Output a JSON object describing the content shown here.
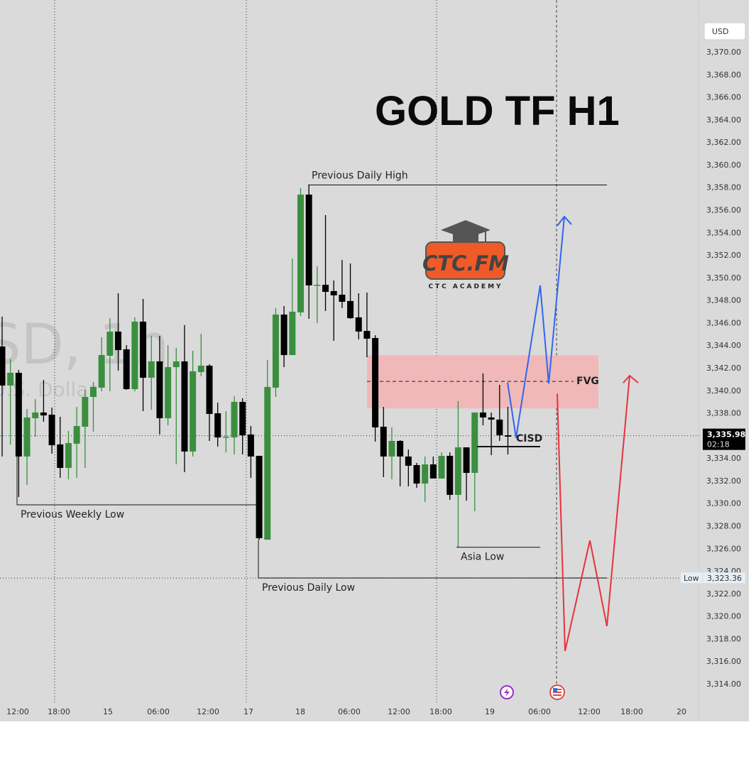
{
  "chart_data": {
    "type": "candlestick",
    "title": "GOLD TF H1",
    "watermark": {
      "symbol": "SD, 1h",
      "description": "U.S. Dollar"
    },
    "currency": "USD",
    "ylim": [
      3312.5,
      3373.5
    ],
    "y_ticks": [
      "3,370.00",
      "3,368.00",
      "3,366.00",
      "3,364.00",
      "3,362.00",
      "3,360.00",
      "3,358.00",
      "3,356.00",
      "3,354.00",
      "3,352.00",
      "3,350.00",
      "3,348.00",
      "3,346.00",
      "3,344.00",
      "3,342.00",
      "3,340.00",
      "3,338.00",
      "3,334.00",
      "3,332.00",
      "3,330.00",
      "3,328.00",
      "3,326.00",
      "3,324.00",
      "3,322.00",
      "3,320.00",
      "3,318.00",
      "3,316.00",
      "3,314.00"
    ],
    "y_tick_values": [
      3370,
      3368,
      3366,
      3364,
      3362,
      3360,
      3358,
      3356,
      3354,
      3352,
      3350,
      3348,
      3346,
      3344,
      3342,
      3340,
      3338,
      3334,
      3332,
      3330,
      3328,
      3326,
      3324,
      3322,
      3320,
      3318,
      3316,
      3314
    ],
    "x_ticks": [
      "12:00",
      "18:00",
      "15",
      "06:00",
      "12:00",
      "17",
      "18",
      "06:00",
      "12:00",
      "18:00",
      "19",
      "06:00",
      "12:00",
      "18:00",
      "20"
    ],
    "current_price": {
      "value": 3335.98,
      "label": "3,335.98",
      "countdown": "02:18"
    },
    "low_marker": {
      "label": "Low",
      "value": 3323.36,
      "value_label": "3,323.36"
    },
    "colors": {
      "bull": "#3a8f3e",
      "bear": "#000000",
      "background": "#dadada",
      "fvg": "#f0b8b8",
      "bull_path": "#2f66f0",
      "bear_path": "#e8323c"
    },
    "candles": [
      [
        3343.89,
        3346.53,
        3334.14,
        3340.43
      ],
      [
        3340.43,
        3342.76,
        3335.21,
        3341.56
      ],
      [
        3341.56,
        3341.81,
        3330.55,
        3334.14
      ],
      [
        3334.14,
        3338.35,
        3331.62,
        3337.6
      ],
      [
        3337.53,
        3339.23,
        3335.9,
        3338.04
      ],
      [
        3338.04,
        3340.93,
        3337.22,
        3337.78
      ],
      [
        3337.85,
        3338.48,
        3334.39,
        3335.14
      ],
      [
        3335.21,
        3337.66,
        3332.25,
        3333.13
      ],
      [
        3333.13,
        3336.4,
        3332.12,
        3335.33
      ],
      [
        3335.27,
        3338.54,
        3332.25,
        3336.84
      ],
      [
        3336.78,
        3340.05,
        3333.13,
        3339.42
      ],
      [
        3339.42,
        3340.74,
        3336.34,
        3340.3
      ],
      [
        3340.24,
        3344.71,
        3339.92,
        3343.13
      ],
      [
        3343.07,
        3346.4,
        3339.92,
        3345.21
      ],
      [
        3345.21,
        3348.61,
        3341.75,
        3343.57
      ],
      [
        3343.64,
        3344.01,
        3340.05,
        3340.11
      ],
      [
        3340.11,
        3346.47,
        3339.92,
        3346.09
      ],
      [
        3346.09,
        3348.1,
        3338.16,
        3341.12
      ],
      [
        3341.12,
        3344.83,
        3338.29,
        3342.57
      ],
      [
        3342.57,
        3344.83,
        3336.09,
        3337.53
      ],
      [
        3337.53,
        3344.01,
        3336.9,
        3342.06
      ],
      [
        3342.06,
        3343.76,
        3333.44,
        3342.57
      ],
      [
        3342.57,
        3345.78,
        3332.75,
        3334.58
      ],
      [
        3334.58,
        3343.51,
        3334.14,
        3341.69
      ],
      [
        3341.62,
        3345.02,
        3341.25,
        3342.19
      ],
      [
        3342.19,
        3342.32,
        3335.52,
        3337.91
      ],
      [
        3337.97,
        3338.92,
        3335.02,
        3335.83
      ],
      [
        3335.83,
        3338.16,
        3334.51,
        3335.9
      ],
      [
        3335.83,
        3339.48,
        3334.32,
        3338.98
      ],
      [
        3338.98,
        3339.3,
        3334.32,
        3336.02
      ],
      [
        3336.09,
        3336.84,
        3332.25,
        3334.14
      ],
      [
        3334.2,
        3334.2,
        3326.77,
        3326.9
      ],
      [
        3326.77,
        3342.69,
        3326.77,
        3340.3
      ],
      [
        3340.24,
        3347.29,
        3339.42,
        3346.72
      ],
      [
        3346.72,
        3347.47,
        3342.06,
        3343.13
      ],
      [
        3343.13,
        3351.69,
        3343.13,
        3346.97
      ],
      [
        3346.91,
        3357.92,
        3346.59,
        3357.35
      ],
      [
        3357.35,
        3358.23,
        3346.34,
        3349.3
      ],
      [
        3349.3,
        3351.0,
        3345.96,
        3349.36
      ],
      [
        3349.36,
        3355.53,
        3347.03,
        3348.73
      ],
      [
        3348.8,
        3349.74,
        3344.39,
        3348.42
      ],
      [
        3348.48,
        3351.56,
        3347.29,
        3347.85
      ],
      [
        3347.92,
        3351.25,
        3346.34,
        3346.4
      ],
      [
        3346.47,
        3348.61,
        3344.52,
        3345.21
      ],
      [
        3345.27,
        3348.67,
        3342.94,
        3344.58
      ],
      [
        3344.64,
        3344.89,
        3335.46,
        3336.72
      ],
      [
        3336.78,
        3338.54,
        3332.31,
        3334.14
      ],
      [
        3334.14,
        3336.72,
        3332.12,
        3335.52
      ],
      [
        3335.52,
        3335.58,
        3331.49,
        3334.14
      ],
      [
        3334.14,
        3334.76,
        3331.49,
        3333.32
      ],
      [
        3333.38,
        3333.57,
        3331.37,
        3331.74
      ],
      [
        3331.74,
        3334.14,
        3330.11,
        3333.44
      ],
      [
        3333.44,
        3334.14,
        3332.19,
        3332.19
      ],
      [
        3332.19,
        3334.51,
        3332.19,
        3334.2
      ],
      [
        3334.2,
        3334.51,
        3330.3,
        3330.74
      ],
      [
        3330.74,
        3339.04,
        3326.08,
        3334.95
      ],
      [
        3334.95,
        3334.95,
        3330.23,
        3332.69
      ],
      [
        3332.69,
        3338.04,
        3329.29,
        3338.04
      ],
      [
        3338.04,
        3341.5,
        3336.9,
        3337.6
      ],
      [
        3337.6,
        3338.04,
        3334.26,
        3337.41
      ],
      [
        3337.41,
        3340.49,
        3335.52,
        3336.02
      ],
      [
        3336.02,
        3338.54,
        3334.32,
        3335.9
      ]
    ],
    "levels": {
      "previous_daily_high": {
        "label": "Previous Daily High",
        "price": 3358.2
      },
      "previous_weekly_low": {
        "label": "Previous Weekly Low",
        "price": 3330.5
      },
      "previous_daily_low": {
        "label": "Previous Daily Low",
        "price": 3326.8
      },
      "asia_low": {
        "label": "Asia Low",
        "price": 3326.1
      },
      "cisd": {
        "label": "CISD",
        "price": 3334.4
      }
    },
    "fvg": {
      "label": "FVG",
      "top": 3343.1,
      "bottom": 3338.4,
      "mid": 3340.8
    },
    "bullish_projection": [
      3340.7,
      3335.8,
      3349.3,
      3340.6,
      3355.4
    ],
    "bearish_projection": [
      3339.7,
      3316.9,
      3326.7,
      3319.1,
      3341.3
    ]
  },
  "logo": {
    "text": "CTC.FM",
    "subtitle": "CTC ACADEMY",
    "colors": {
      "badge": "#f05a28",
      "text": "#444444"
    }
  },
  "icons": {
    "event_lightning": "lightning-icon",
    "event_us": "us-flag-icon"
  }
}
